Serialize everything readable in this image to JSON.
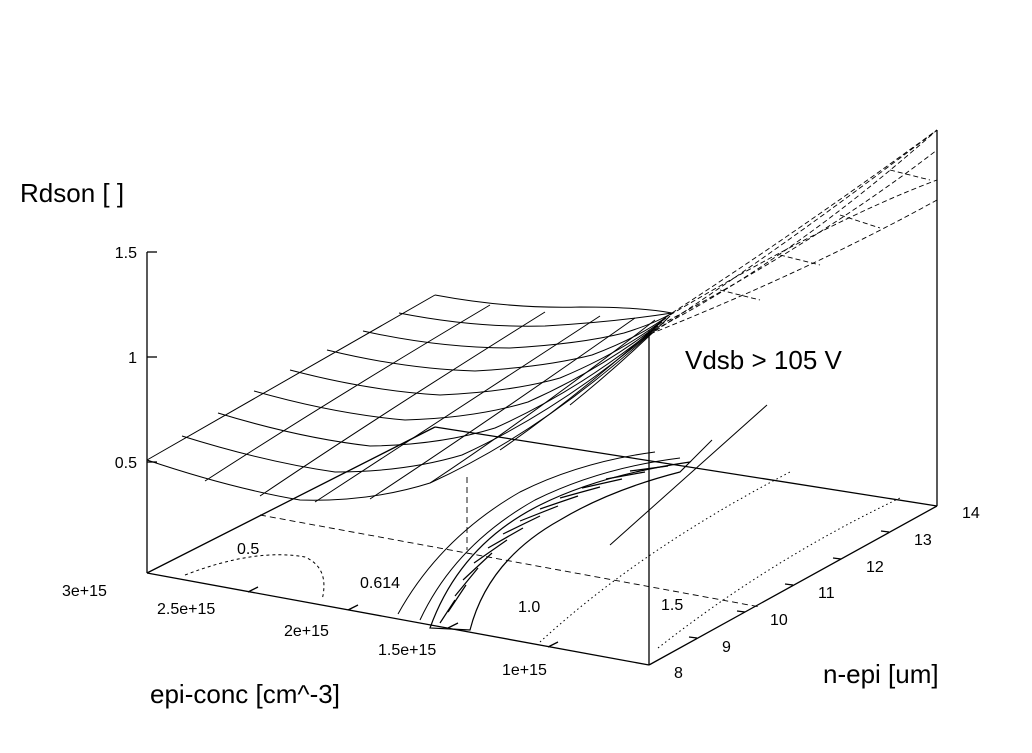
{
  "chart_data": {
    "type": "surface",
    "zlabel": "Rdson [ ]",
    "xlabel": "epi-conc [cm^-3]",
    "ylabel": "n-epi [um]",
    "annotation": "Vdsb > 105 V",
    "z_ticks": [
      "0.5",
      "1",
      "1.5"
    ],
    "x_ticks": [
      "3e+15",
      "2.5e+15",
      "2e+15",
      "1.5e+15",
      "1e+15"
    ],
    "y_ticks": [
      "8",
      "9",
      "10",
      "11",
      "12",
      "13",
      "14"
    ],
    "contour_labels": [
      "0.5",
      "0.614",
      "1.0",
      "1.5"
    ],
    "x_range": [
      500000000000000.0,
      3000000000000000.0
    ],
    "y_range": [
      8,
      14
    ],
    "z_range": [
      0,
      1.5
    ],
    "grid": false,
    "surface_row_at_n_epi_8": [
      {
        "epi_conc": 3000000000000000.0,
        "rdson": 0.53
      },
      {
        "epi_conc": 2500000000000000.0,
        "rdson": 0.52
      },
      {
        "epi_conc": 2000000000000000.0,
        "rdson": 0.55
      },
      {
        "epi_conc": 1500000000000000.0,
        "rdson": 0.64
      },
      {
        "epi_conc": 1000000000000000.0,
        "rdson": 0.85
      },
      {
        "epi_conc": 500000000000000.0,
        "rdson": 1.05
      }
    ]
  }
}
